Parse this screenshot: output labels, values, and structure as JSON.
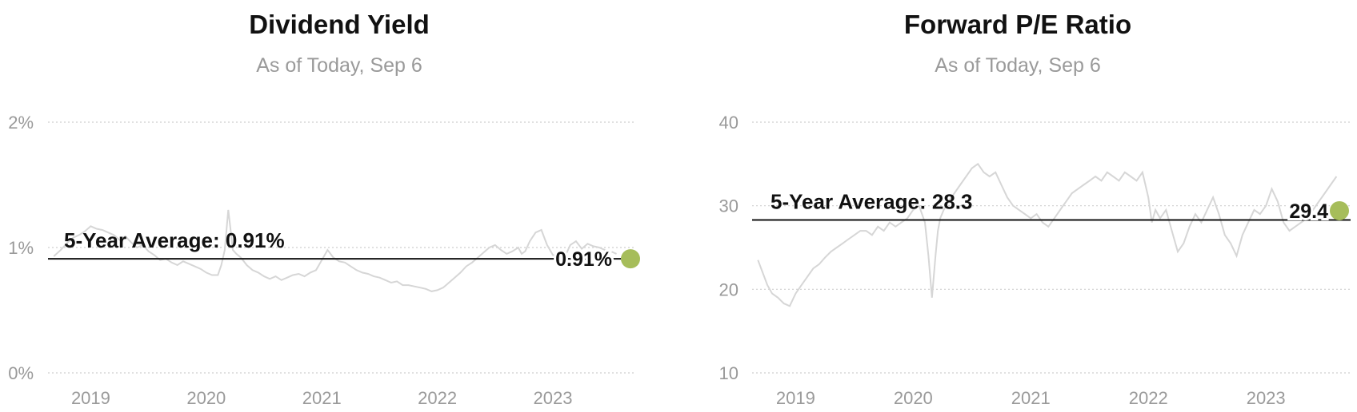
{
  "chart_data": [
    {
      "type": "line",
      "title": "Dividend Yield",
      "subtitle": "As of Today, Sep 6",
      "y_unit": "%",
      "ylim": [
        0,
        2
      ],
      "y_ticks": [
        0,
        1,
        2
      ],
      "y_tick_labels": [
        "0%",
        "1%",
        "2%"
      ],
      "x_ticks": [
        2019,
        2020,
        2021,
        2022,
        2023
      ],
      "x_tick_labels": [
        "2019",
        "2020",
        "2021",
        "2022",
        "2023"
      ],
      "xlim": [
        2018.63,
        2023.72
      ],
      "grid": "horizontal dotted",
      "average": {
        "value": 0.91,
        "label": "5-Year Average: 0.91%"
      },
      "current": {
        "value": 0.91,
        "label": "0.91%",
        "x": 2023.68
      },
      "series": [
        {
          "x": [
            2018.68,
            2018.74,
            2018.8,
            2018.85,
            2018.9,
            2018.95,
            2019.0,
            2019.05,
            2019.1,
            2019.15,
            2019.2,
            2019.25,
            2019.3,
            2019.35,
            2019.4,
            2019.45,
            2019.5,
            2019.55,
            2019.6,
            2019.65,
            2019.7,
            2019.75,
            2019.8,
            2019.85,
            2019.9,
            2019.95,
            2020.0,
            2020.05,
            2020.1,
            2020.13,
            2020.16,
            2020.19,
            2020.21,
            2020.23,
            2020.26,
            2020.3,
            2020.35,
            2020.4,
            2020.45,
            2020.5,
            2020.55,
            2020.6,
            2020.65,
            2020.7,
            2020.75,
            2020.8,
            2020.85,
            2020.9,
            2020.95,
            2021.0,
            2021.05,
            2021.1,
            2021.15,
            2021.2,
            2021.25,
            2021.3,
            2021.35,
            2021.4,
            2021.45,
            2021.5,
            2021.55,
            2021.6,
            2021.65,
            2021.7,
            2021.75,
            2021.8,
            2021.85,
            2021.9,
            2021.95,
            2022.0,
            2022.05,
            2022.1,
            2022.15,
            2022.2,
            2022.25,
            2022.3,
            2022.35,
            2022.4,
            2022.45,
            2022.5,
            2022.55,
            2022.6,
            2022.65,
            2022.7,
            2022.73,
            2022.76,
            2022.8,
            2022.85,
            2022.9,
            2022.95,
            2023.0,
            2023.05,
            2023.1,
            2023.15,
            2023.2,
            2023.25,
            2023.3,
            2023.35,
            2023.4,
            2023.45,
            2023.5,
            2023.55
          ],
          "y": [
            0.93,
            0.98,
            1.04,
            1.08,
            1.1,
            1.13,
            1.17,
            1.15,
            1.14,
            1.12,
            1.1,
            1.06,
            1.09,
            1.04,
            1.0,
            1.02,
            0.97,
            0.94,
            0.9,
            0.91,
            0.88,
            0.86,
            0.89,
            0.87,
            0.85,
            0.83,
            0.8,
            0.78,
            0.78,
            0.86,
            0.98,
            1.3,
            1.14,
            0.98,
            0.95,
            0.92,
            0.86,
            0.82,
            0.8,
            0.77,
            0.75,
            0.77,
            0.74,
            0.76,
            0.78,
            0.79,
            0.77,
            0.8,
            0.82,
            0.9,
            0.98,
            0.92,
            0.89,
            0.88,
            0.85,
            0.82,
            0.8,
            0.79,
            0.77,
            0.76,
            0.74,
            0.72,
            0.73,
            0.7,
            0.7,
            0.69,
            0.68,
            0.67,
            0.65,
            0.66,
            0.68,
            0.72,
            0.76,
            0.8,
            0.85,
            0.88,
            0.92,
            0.96,
            1.0,
            1.02,
            0.98,
            0.95,
            0.97,
            1.0,
            0.95,
            0.97,
            1.05,
            1.12,
            1.14,
            1.02,
            0.94,
            0.93,
            0.92,
            1.02,
            1.05,
            0.99,
            1.03,
            1.01,
            1.0,
            0.98,
            0.97,
            0.95
          ]
        }
      ]
    },
    {
      "type": "line",
      "title": "Forward P/E Ratio",
      "subtitle": "As of Today, Sep 6",
      "ylim": [
        10,
        40
      ],
      "y_ticks": [
        10,
        20,
        30,
        40
      ],
      "y_tick_labels": [
        "10",
        "20",
        "30",
        "40"
      ],
      "x_ticks": [
        2019,
        2020,
        2021,
        2022,
        2023
      ],
      "x_tick_labels": [
        "2019",
        "2020",
        "2021",
        "2022",
        "2023"
      ],
      "xlim": [
        2018.63,
        2023.72
      ],
      "grid": "horizontal dotted",
      "average": {
        "value": 28.3,
        "label": "5-Year Average: 28.3"
      },
      "current": {
        "value": 29.4,
        "label": "29.4",
        "x": 2023.68
      },
      "series": [
        {
          "x": [
            2018.68,
            2018.72,
            2018.76,
            2018.8,
            2018.85,
            2018.9,
            2018.95,
            2019.0,
            2019.05,
            2019.1,
            2019.15,
            2019.2,
            2019.25,
            2019.3,
            2019.35,
            2019.4,
            2019.45,
            2019.5,
            2019.55,
            2019.6,
            2019.65,
            2019.7,
            2019.75,
            2019.8,
            2019.85,
            2019.9,
            2019.95,
            2020.0,
            2020.05,
            2020.1,
            2020.13,
            2020.16,
            2020.19,
            2020.21,
            2020.23,
            2020.26,
            2020.3,
            2020.35,
            2020.4,
            2020.45,
            2020.5,
            2020.55,
            2020.6,
            2020.65,
            2020.7,
            2020.75,
            2020.8,
            2020.85,
            2020.9,
            2020.95,
            2021.0,
            2021.05,
            2021.1,
            2021.15,
            2021.2,
            2021.25,
            2021.3,
            2021.35,
            2021.4,
            2021.45,
            2021.5,
            2021.55,
            2021.6,
            2021.65,
            2021.7,
            2021.75,
            2021.8,
            2021.85,
            2021.9,
            2021.95,
            2022.0,
            2022.03,
            2022.06,
            2022.1,
            2022.15,
            2022.2,
            2022.25,
            2022.3,
            2022.35,
            2022.4,
            2022.45,
            2022.5,
            2022.55,
            2022.6,
            2022.65,
            2022.7,
            2022.75,
            2022.8,
            2022.85,
            2022.9,
            2022.95,
            2023.0,
            2023.05,
            2023.1,
            2023.15,
            2023.2,
            2023.25,
            2023.3,
            2023.35,
            2023.4,
            2023.45,
            2023.5,
            2023.55,
            2023.6
          ],
          "y": [
            23.5,
            22.0,
            20.5,
            19.5,
            19.0,
            18.3,
            18.0,
            19.5,
            20.5,
            21.5,
            22.5,
            23.0,
            23.8,
            24.5,
            25.0,
            25.5,
            26.0,
            26.5,
            27.0,
            27.0,
            26.5,
            27.5,
            27.0,
            28.0,
            27.5,
            28.0,
            28.5,
            29.5,
            30.0,
            28.0,
            24.0,
            19.0,
            24.0,
            27.0,
            28.5,
            29.5,
            30.5,
            31.5,
            32.5,
            33.5,
            34.5,
            35.0,
            34.0,
            33.5,
            34.0,
            32.5,
            31.0,
            30.0,
            29.5,
            29.0,
            28.5,
            29.0,
            28.0,
            27.5,
            28.5,
            29.5,
            30.5,
            31.5,
            32.0,
            32.5,
            33.0,
            33.5,
            33.0,
            34.0,
            33.5,
            33.0,
            34.0,
            33.5,
            33.0,
            34.0,
            31.0,
            28.0,
            29.5,
            28.5,
            29.5,
            27.0,
            24.5,
            25.5,
            27.5,
            29.0,
            28.0,
            29.5,
            31.0,
            29.0,
            26.5,
            25.5,
            24.0,
            26.5,
            28.0,
            29.5,
            29.0,
            30.0,
            32.0,
            30.5,
            28.0,
            27.0,
            27.5,
            28.0,
            28.5,
            29.5,
            30.5,
            31.5,
            32.5,
            33.5
          ]
        }
      ]
    }
  ]
}
